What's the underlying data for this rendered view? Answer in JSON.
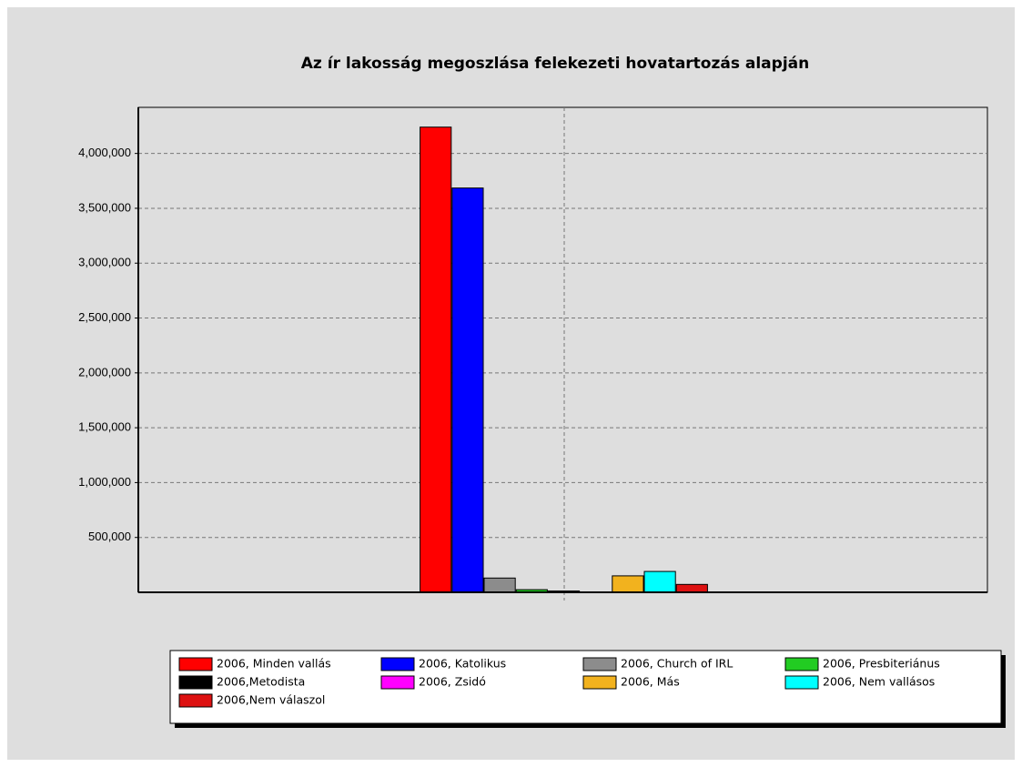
{
  "chart_data": {
    "type": "bar",
    "title": "Az ír lakosság megoszlása felekezeti hovatartozás alapján",
    "series": [
      {
        "name": "2006, Minden vallás",
        "color": "#ff0000",
        "values": [
          4240000
        ]
      },
      {
        "name": "2006,  Katolikus",
        "color": "#0000ff",
        "values": [
          3685000
        ]
      },
      {
        "name": "2006, Church of IRL",
        "color": "#8c8c8c",
        "values": [
          130000
        ]
      },
      {
        "name": "2006, Presbiteriánus",
        "color": "#22cc22",
        "values": [
          24000
        ]
      },
      {
        "name": "2006,Metodista",
        "color": "#000000",
        "values": [
          12000
        ]
      },
      {
        "name": "2006,  Zsidó",
        "color": "#ff00ff",
        "values": [
          2000
        ]
      },
      {
        "name": "2006,  Más",
        "color": "#f2b21e",
        "values": [
          150000
        ]
      },
      {
        "name": "2006, Nem vallásos",
        "color": "#00ffff",
        "values": [
          190000
        ]
      },
      {
        "name": "2006,Nem válaszol",
        "color": "#dd1111",
        "values": [
          72000
        ]
      }
    ],
    "ylim": [
      0,
      4420000
    ],
    "yticks": [
      {
        "value": 500000,
        "label": "500,000"
      },
      {
        "value": 1000000,
        "label": "1,000,000"
      },
      {
        "value": 1500000,
        "label": "1,500,000"
      },
      {
        "value": 2000000,
        "label": "2,000,000"
      },
      {
        "value": 2500000,
        "label": "2,500,000"
      },
      {
        "value": 3000000,
        "label": "3,000,000"
      },
      {
        "value": 3500000,
        "label": "3,500,000"
      },
      {
        "value": 4000000,
        "label": "4,000,000"
      }
    ],
    "grid": true
  }
}
